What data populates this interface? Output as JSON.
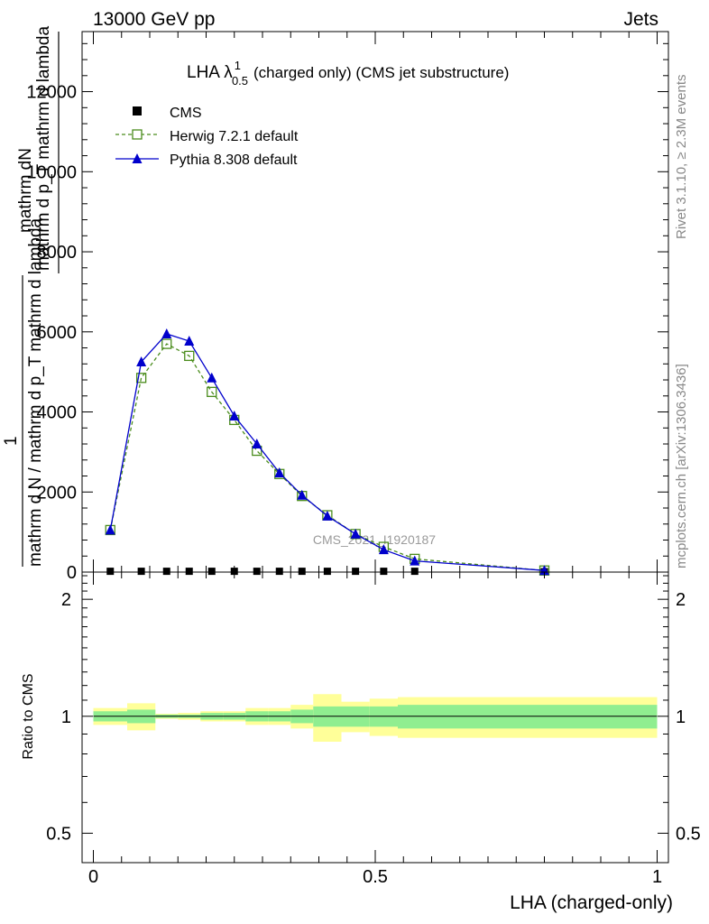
{
  "header": {
    "left": "13000 GeV pp",
    "right": "Jets"
  },
  "side": {
    "rivet": "Rivet 3.1.10, ≥ 2.3M events",
    "mcplots": "mcplots.cern.ch [arXiv:1306.3436]"
  },
  "watermark": "CMS_2021_I1920187",
  "chart_data": [
    {
      "type": "line",
      "title": "LHA λ",
      "title_sup": "1",
      "title_sub": "0.5",
      "title_rest": "(charged only) (CMS jet substructure)",
      "ylabel_lines": [
        "mathrm dN",
        "mathrm d p_T mathrm d lambda",
        "1",
        "mathrm d N / mathrm d p_T mathrm d lambda"
      ],
      "xlim": [
        -0.02,
        1.02
      ],
      "ylim": [
        0,
        13500
      ],
      "yticks": [
        0,
        2000,
        4000,
        6000,
        8000,
        10000,
        12000
      ],
      "ytick_labels": [
        "0",
        "2000",
        "4000",
        "6000",
        "8000",
        "10000",
        "12000"
      ],
      "legend_position": "top-left",
      "series": [
        {
          "name": "CMS",
          "color": "#000000",
          "marker": "square-filled",
          "x": [
            0.03,
            0.085,
            0.13,
            0.17,
            0.21,
            0.25,
            0.29,
            0.33,
            0.37,
            0.415,
            0.465,
            0.515,
            0.57,
            0.8
          ],
          "y": [
            20,
            20,
            20,
            20,
            20,
            20,
            20,
            20,
            20,
            20,
            20,
            20,
            20,
            10
          ]
        },
        {
          "name": "Herwig 7.2.1 default",
          "color": "#4a8c1c",
          "marker": "square-open",
          "dash": true,
          "x": [
            0.03,
            0.085,
            0.13,
            0.17,
            0.21,
            0.25,
            0.29,
            0.33,
            0.37,
            0.415,
            0.465,
            0.515,
            0.57,
            0.8
          ],
          "y": [
            1050,
            4850,
            5700,
            5400,
            4500,
            3800,
            3030,
            2450,
            1900,
            1420,
            950,
            630,
            330,
            40
          ]
        },
        {
          "name": "Pythia 8.308 default",
          "color": "#0000cc",
          "marker": "triangle-filled",
          "x": [
            0.03,
            0.085,
            0.13,
            0.17,
            0.21,
            0.25,
            0.29,
            0.33,
            0.37,
            0.415,
            0.465,
            0.515,
            0.57,
            0.8
          ],
          "y": [
            1050,
            5250,
            5950,
            5770,
            4850,
            3900,
            3200,
            2480,
            1920,
            1400,
            950,
            560,
            280,
            40
          ]
        }
      ]
    },
    {
      "type": "line",
      "ylabel": "Ratio to CMS",
      "xlabel": "LHA (charged-only)",
      "xlim": [
        -0.02,
        1.02
      ],
      "ylim": [
        0.42,
        2.35
      ],
      "xticks": [
        0,
        0.5,
        1
      ],
      "xtick_labels": [
        "0",
        "0.5",
        "1"
      ],
      "yticks": [
        0.5,
        1,
        2
      ],
      "ytick_labels": [
        "0.5",
        "1",
        "2"
      ],
      "bands": {
        "edges": [
          0,
          0.06,
          0.11,
          0.15,
          0.19,
          0.23,
          0.27,
          0.31,
          0.35,
          0.39,
          0.44,
          0.49,
          0.54,
          0.6,
          1.0
        ],
        "inner_color": "#90ee90",
        "outer_color": "#ffff99",
        "inner_lo": [
          0.97,
          0.96,
          0.99,
          0.99,
          0.98,
          0.98,
          0.97,
          0.97,
          0.96,
          0.94,
          0.94,
          0.94,
          0.93,
          0.93
        ],
        "inner_hi": [
          1.03,
          1.04,
          1.01,
          1.01,
          1.02,
          1.02,
          1.03,
          1.03,
          1.04,
          1.06,
          1.06,
          1.06,
          1.07,
          1.07
        ],
        "outer_lo": [
          0.95,
          0.92,
          0.985,
          0.98,
          0.97,
          0.97,
          0.95,
          0.95,
          0.93,
          0.86,
          0.91,
          0.89,
          0.88,
          0.88
        ],
        "outer_hi": [
          1.05,
          1.08,
          1.015,
          1.02,
          1.03,
          1.03,
          1.05,
          1.05,
          1.07,
          1.14,
          1.09,
          1.11,
          1.12,
          1.12
        ]
      }
    }
  ]
}
